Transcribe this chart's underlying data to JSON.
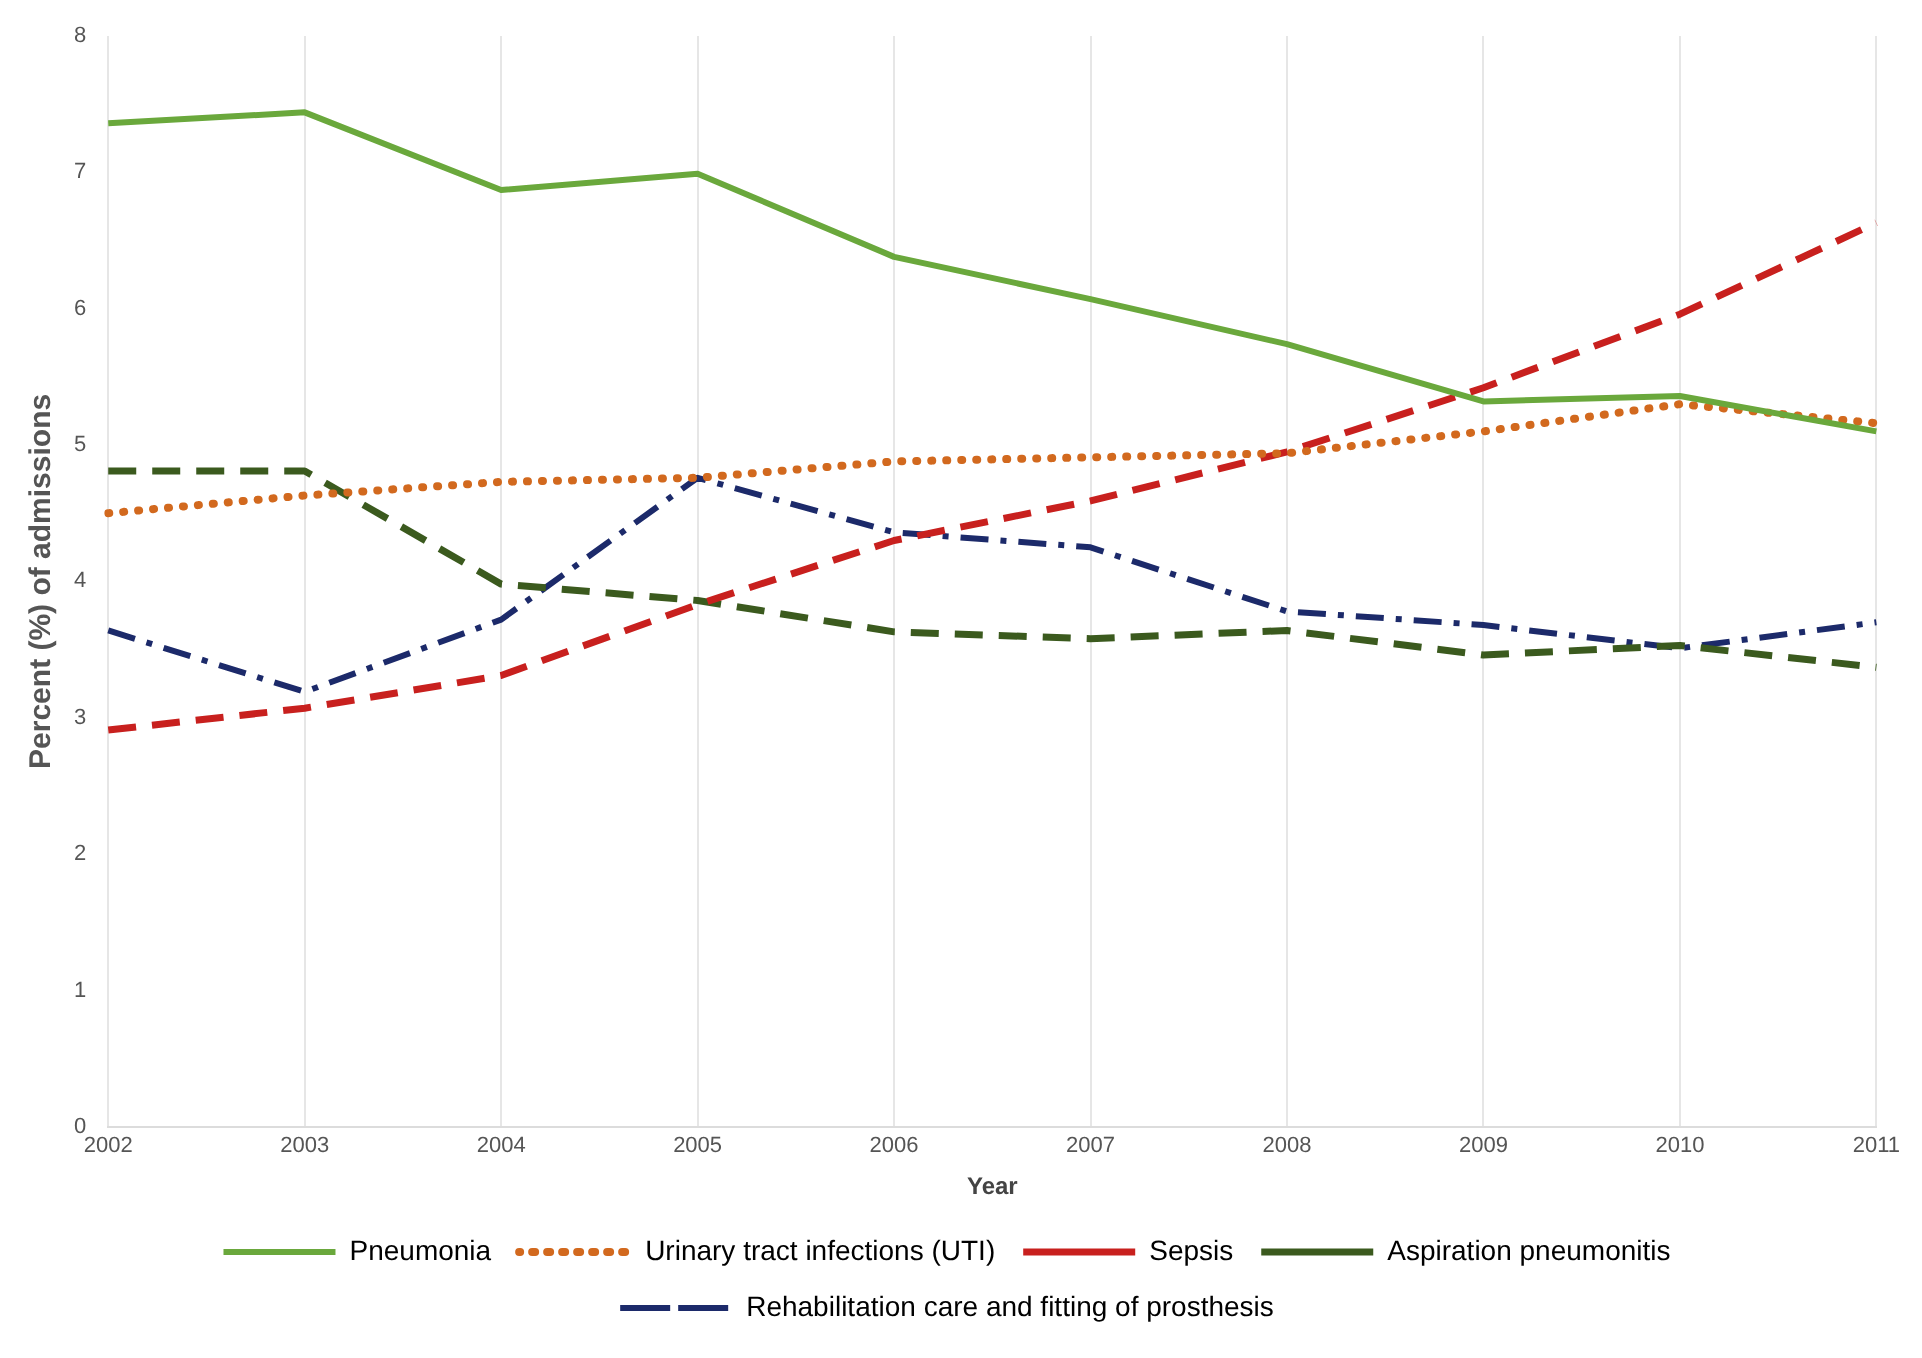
{
  "chart_data": {
    "type": "line",
    "xlabel": "Year",
    "ylabel": "Percent (%) of admissions",
    "categories": [
      "2002",
      "2003",
      "2004",
      "2005",
      "2006",
      "2007",
      "2008",
      "2009",
      "2010",
      "2011"
    ],
    "ylim": [
      0,
      8
    ],
    "yticks": [
      0,
      1,
      2,
      3,
      4,
      5,
      6,
      7,
      8
    ],
    "grid": "x",
    "legend": "bottom",
    "marker": "none",
    "series": [
      {
        "name": "Pneumonia",
        "color": "#6aa83c",
        "line_style": "solid",
        "values": [
          7.36,
          7.44,
          6.87,
          6.99,
          6.38,
          6.07,
          5.74,
          5.32,
          5.36,
          5.1
        ]
      },
      {
        "name": "Urinary tract infections (UTI)",
        "color": "#d2691e",
        "line_style": "dotted",
        "values": [
          4.5,
          4.63,
          4.73,
          4.76,
          4.88,
          4.91,
          4.94,
          5.1,
          5.3,
          5.16
        ]
      },
      {
        "name": "Sepsis",
        "color": "#c8201e",
        "line_style": "dashed",
        "values": [
          2.91,
          3.07,
          3.31,
          3.83,
          4.3,
          4.59,
          4.95,
          5.42,
          5.96,
          6.63
        ]
      },
      {
        "name": "Aspiration pneumonitis",
        "color": "#3b5a1e",
        "line_style": "dashed",
        "values": [
          4.81,
          4.81,
          3.98,
          3.86,
          3.63,
          3.58,
          3.64,
          3.46,
          3.53,
          3.37
        ]
      },
      {
        "name": "Rehabilitation care and fitting of prosthesis",
        "color": "#1c2a6a",
        "line_style": "dashdot",
        "values": [
          3.64,
          3.19,
          3.72,
          4.76,
          4.36,
          4.25,
          3.78,
          3.68,
          3.51,
          3.7
        ]
      }
    ]
  }
}
